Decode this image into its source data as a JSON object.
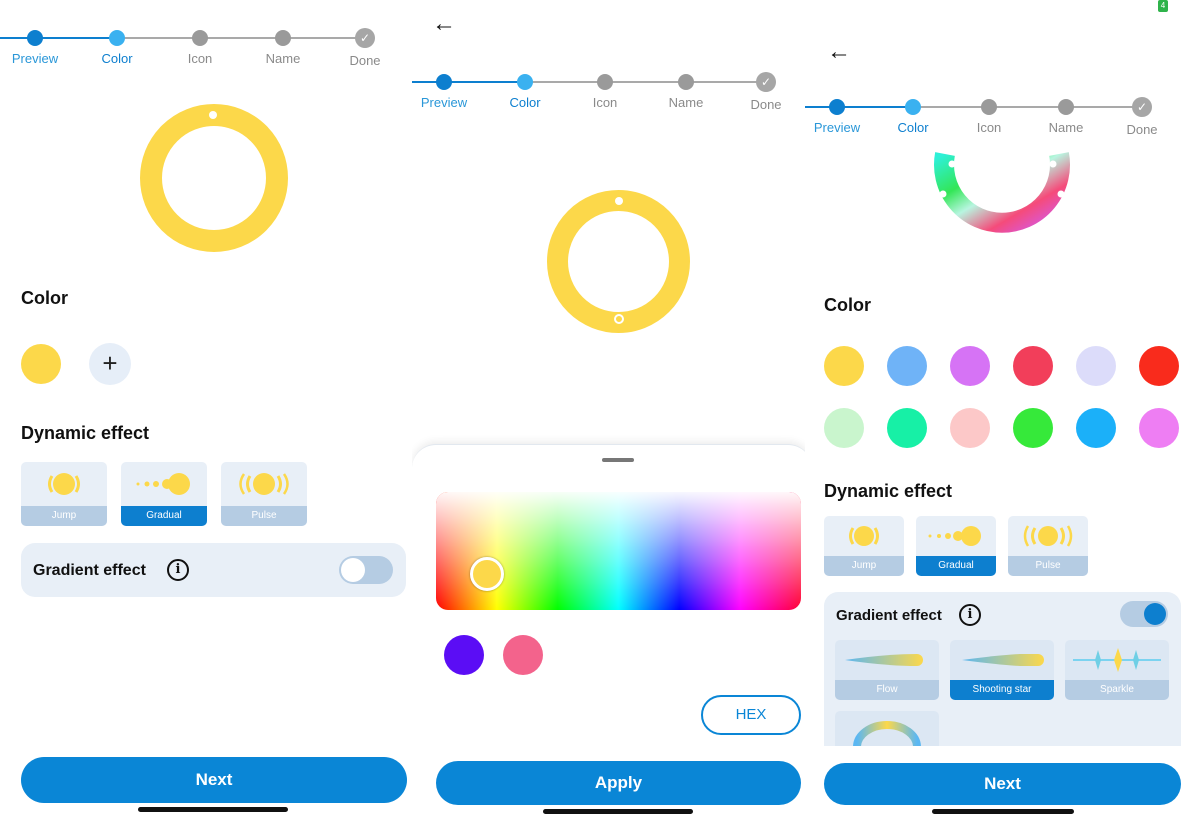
{
  "steps": [
    "Preview",
    "Color",
    "Icon",
    "Name",
    "Done"
  ],
  "colors": {
    "accent": "#0a86d6",
    "yellow": "#fcd84a",
    "card_bg": "#e8eff7",
    "card_caption": "#b5cce3"
  },
  "screen1": {
    "color_heading": "Color",
    "selected_color": "#fcd84a",
    "add_symbol": "+",
    "dynamic_heading": "Dynamic effect",
    "effects": [
      {
        "label": "Jump",
        "selected": false
      },
      {
        "label": "Gradual",
        "selected": true
      },
      {
        "label": "Pulse",
        "selected": false
      }
    ],
    "gradient_label": "Gradient effect",
    "gradient_on": false,
    "next_label": "Next"
  },
  "screen2": {
    "back_symbol": "←",
    "picker_color": "#fcd84a",
    "recent_colors": [
      "#5b0df5",
      "#f3638c"
    ],
    "hex_label": "HEX",
    "apply_label": "Apply"
  },
  "screen3": {
    "back_symbol": "←",
    "color_heading": "Color",
    "palette": [
      "#fcd84a",
      "#6fb3f7",
      "#d673f5",
      "#f23e5a",
      "#dcdcfa",
      "#f92b1c",
      "#c9f5cd",
      "#17f0a6",
      "#fcc8c8",
      "#36e93a",
      "#1bb0f9",
      "#ee7ef3"
    ],
    "dynamic_heading": "Dynamic effect",
    "effects": [
      {
        "label": "Jump",
        "selected": false
      },
      {
        "label": "Gradual",
        "selected": true
      },
      {
        "label": "Pulse",
        "selected": false
      }
    ],
    "gradient_label": "Gradient effect",
    "gradient_on": true,
    "gradient_types": [
      {
        "label": "Flow",
        "selected": false
      },
      {
        "label": "Shooting star",
        "selected": true
      },
      {
        "label": "Sparkle",
        "selected": false
      }
    ],
    "next_label": "Next"
  },
  "icons": {
    "back": "back-arrow-icon",
    "info": "info-icon",
    "check": "check-icon",
    "add": "plus-icon"
  }
}
